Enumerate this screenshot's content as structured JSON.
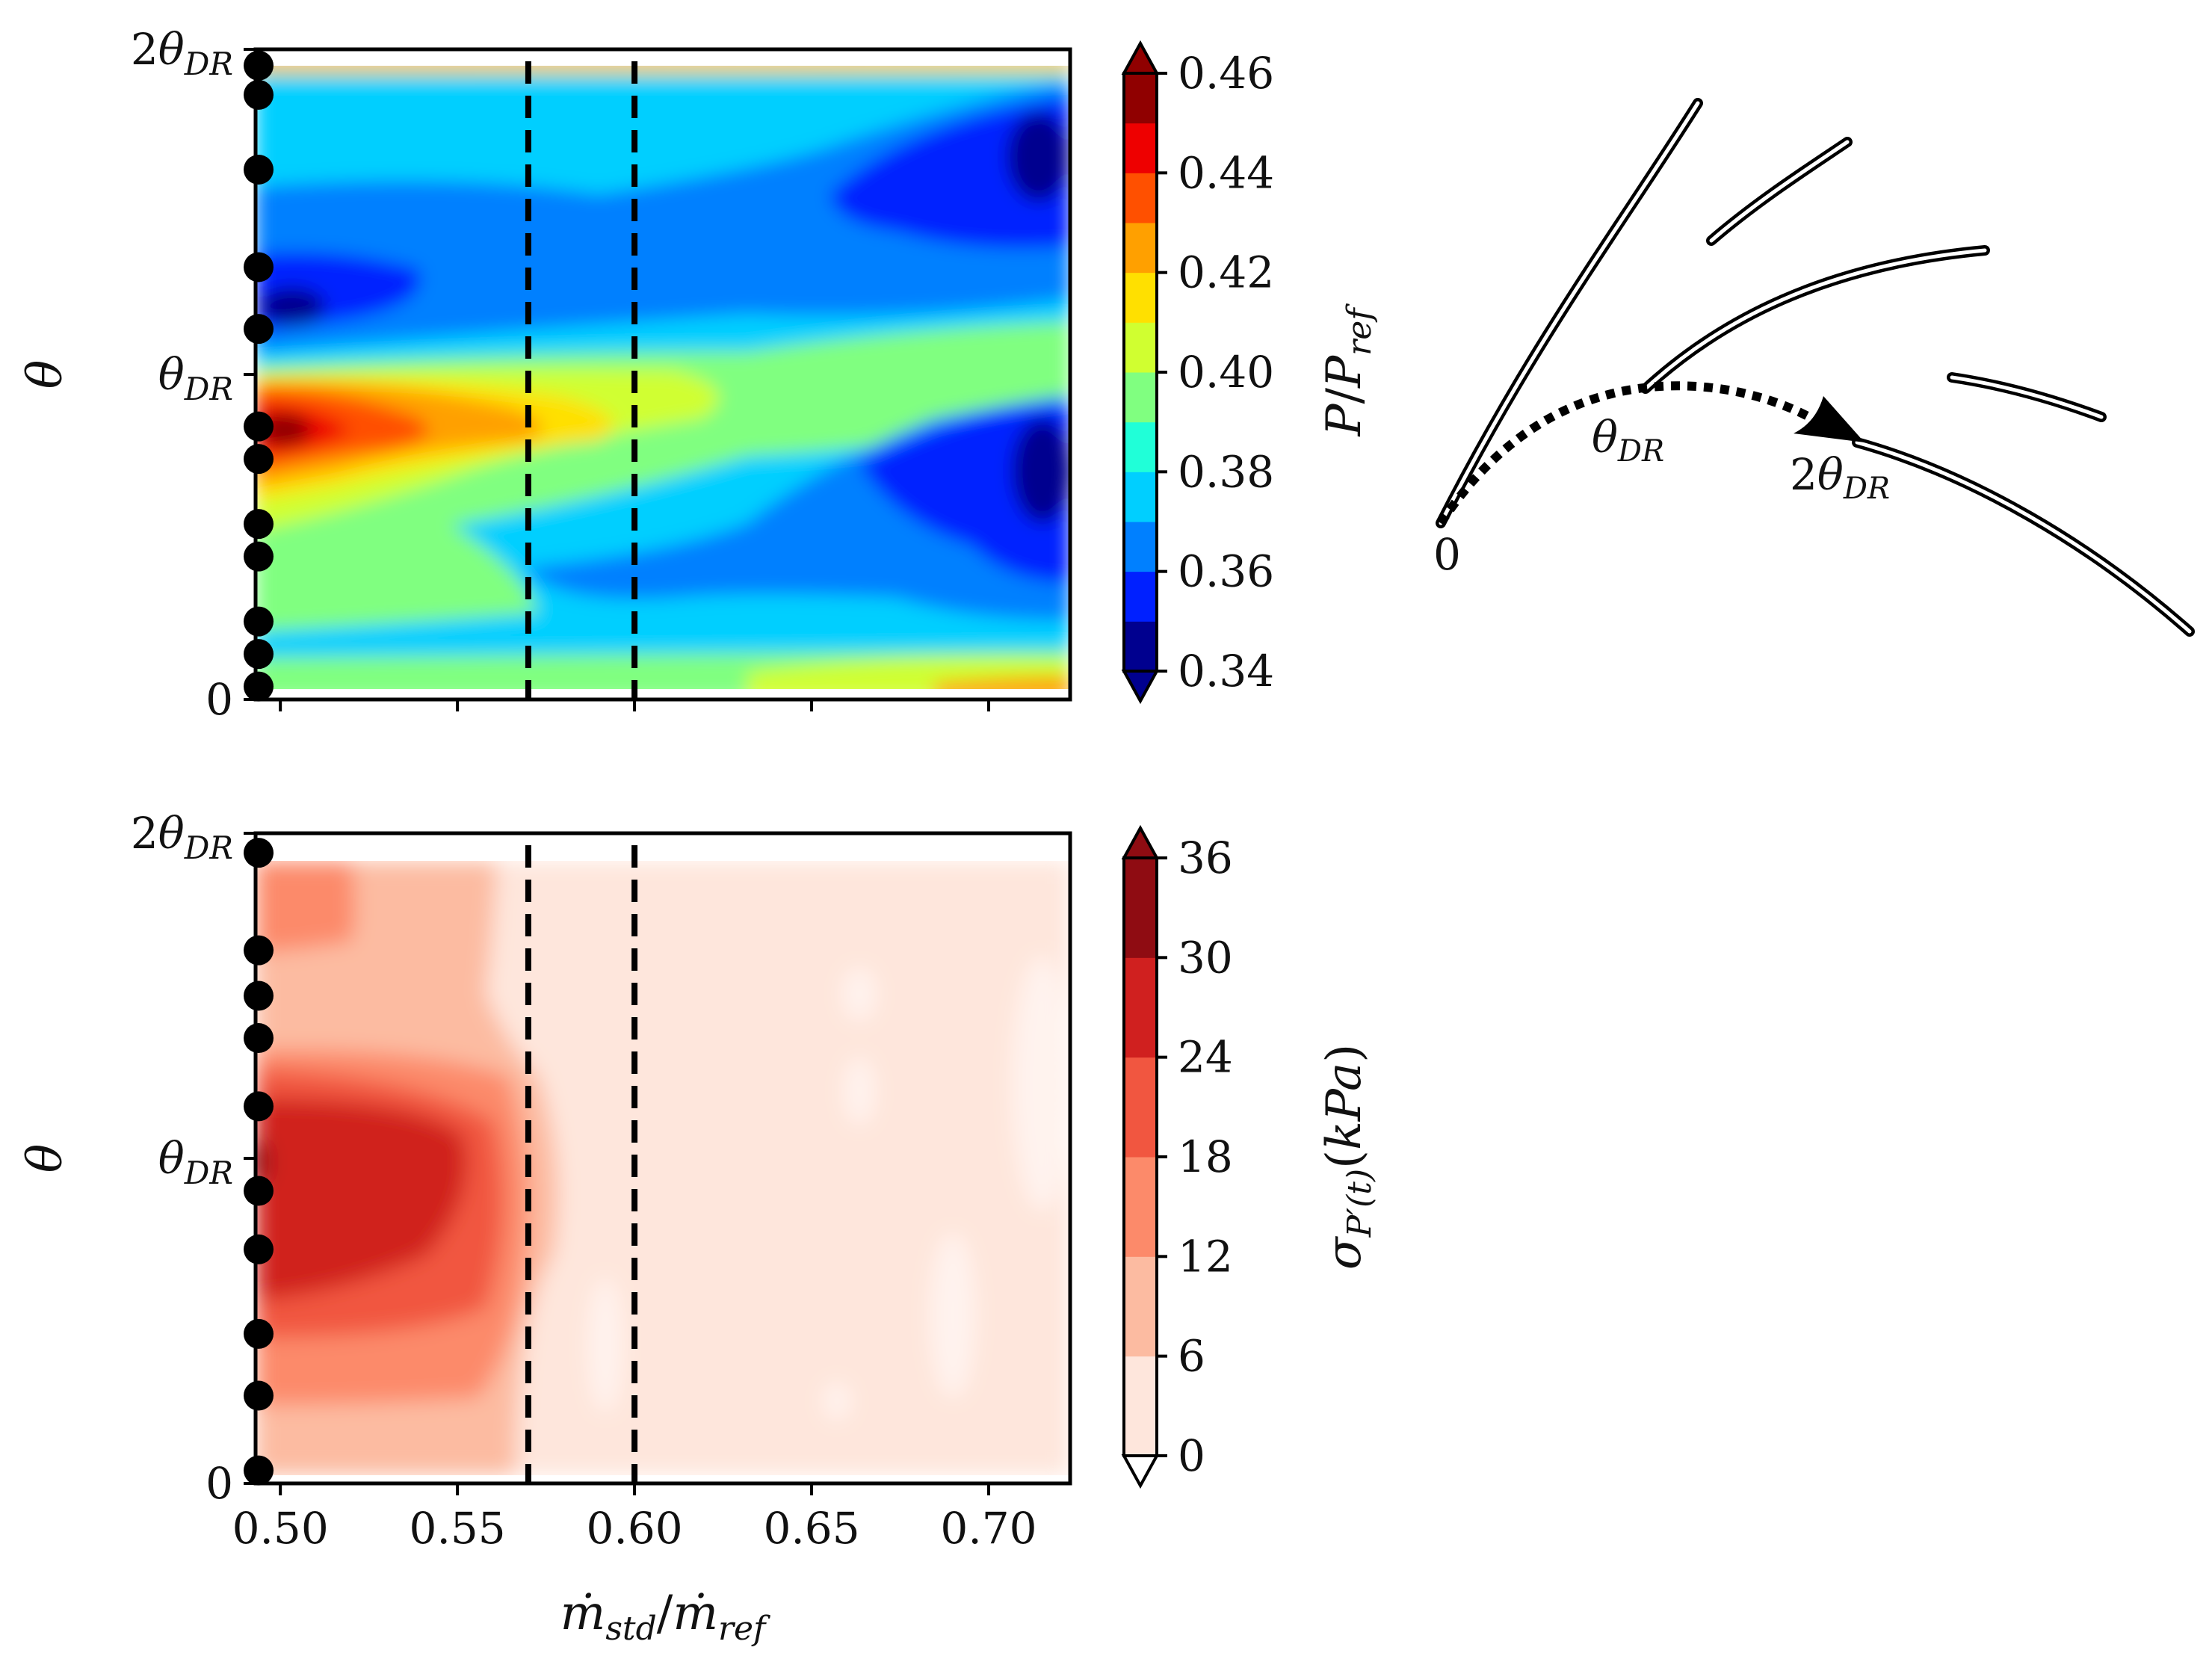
{
  "chart_data": [
    {
      "type": "heatmap",
      "name": "mean-pressure-map",
      "title": "",
      "xlabel": "",
      "ylabel": "θ",
      "xlim": [
        0.493,
        0.723
      ],
      "ylim": [
        0,
        2
      ],
      "x_ticks": [
        0.5,
        0.55,
        0.6,
        0.65,
        0.7
      ],
      "y_ticks": [
        {
          "value": 0,
          "label": "0"
        },
        {
          "value": 1,
          "label": "θDR"
        },
        {
          "value": 2,
          "label": "2θDR"
        }
      ],
      "vlines": [
        0.57,
        0.6
      ],
      "probe_y": [
        1.95,
        1.86,
        1.63,
        1.33,
        1.14,
        0.84,
        0.74,
        0.54,
        0.44,
        0.24,
        0.14,
        0.04
      ],
      "colorbar": {
        "label": "P/Pref",
        "min": 0.34,
        "max": 0.46,
        "ticks": [
          "0.46",
          "0.44",
          "0.42",
          "0.40",
          "0.38",
          "0.36",
          "0.34"
        ],
        "extend": "both",
        "colors": [
          "#00008f",
          "#0020ff",
          "#0080ff",
          "#00cfff",
          "#20ffd8",
          "#80ff80",
          "#d0ff30",
          "#ffe000",
          "#ffa000",
          "#ff5000",
          "#ee0000",
          "#900000"
        ]
      }
    },
    {
      "type": "heatmap",
      "name": "pressure-fluctuation-map",
      "title": "",
      "xlabel": "ṁstd/ṁref",
      "ylabel": "θ",
      "xlim": [
        0.493,
        0.723
      ],
      "ylim": [
        0,
        2
      ],
      "x_ticks": [
        "0.50",
        "0.55",
        "0.60",
        "0.65",
        "0.70"
      ],
      "y_ticks": [
        {
          "value": 0,
          "label": "0"
        },
        {
          "value": 1,
          "label": "θDR"
        },
        {
          "value": 2,
          "label": "2θDR"
        }
      ],
      "vlines": [
        0.57,
        0.6
      ],
      "probe_y": [
        1.94,
        1.64,
        1.5,
        1.37,
        1.16,
        0.9,
        0.72,
        0.46,
        0.27,
        0.04
      ],
      "colorbar": {
        "label": "σP′(t)(kPa)",
        "min": 0,
        "max": 36,
        "ticks": [
          "36",
          "30",
          "24",
          "18",
          "12",
          "6",
          "0"
        ],
        "extend": "both",
        "colors": [
          "#fee6dc",
          "#fcbba1",
          "#fc8a6a",
          "#f15640",
          "#d0201f",
          "#8f0c12"
        ]
      }
    }
  ],
  "diagram": {
    "label_zero": "0",
    "label_theta": "θDR",
    "label_two_theta": "2θDR"
  }
}
